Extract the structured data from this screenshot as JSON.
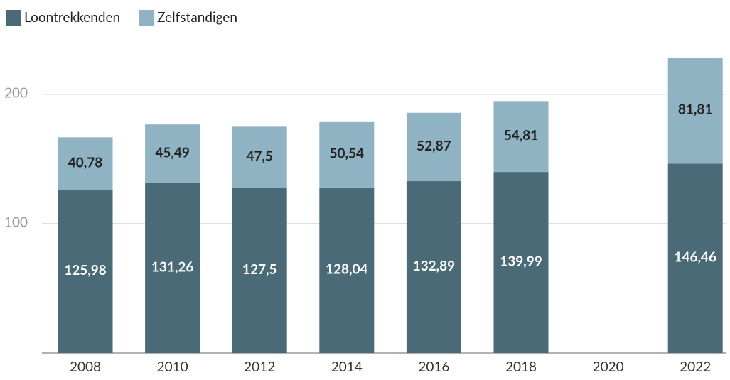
{
  "chart_data": {
    "type": "stacked_bar",
    "categories": [
      "2008",
      "2010",
      "2012",
      "2014",
      "2016",
      "2018",
      "2020",
      "2022"
    ],
    "series": [
      {
        "name": "Loontrekkenden",
        "color": "#4a6a77",
        "values": [
          125.98,
          131.26,
          127.5,
          128.04,
          132.89,
          139.99,
          null,
          146.46
        ],
        "value_labels": [
          "125,98",
          "131,26",
          "127,5",
          "128,04",
          "132,89",
          "139,99",
          null,
          "146,46"
        ]
      },
      {
        "name": "Zelfstandigen",
        "color": "#8fb3c3",
        "values": [
          40.78,
          45.49,
          47.5,
          50.54,
          52.87,
          54.81,
          null,
          81.81
        ],
        "value_labels": [
          "40,78",
          "45,49",
          "47,5",
          "50,54",
          "52,87",
          "54,81",
          null,
          "81,81"
        ]
      }
    ],
    "ylim": [
      0,
      240
    ],
    "yticks": [
      100,
      200
    ],
    "grid": true,
    "legend": "top-left"
  }
}
